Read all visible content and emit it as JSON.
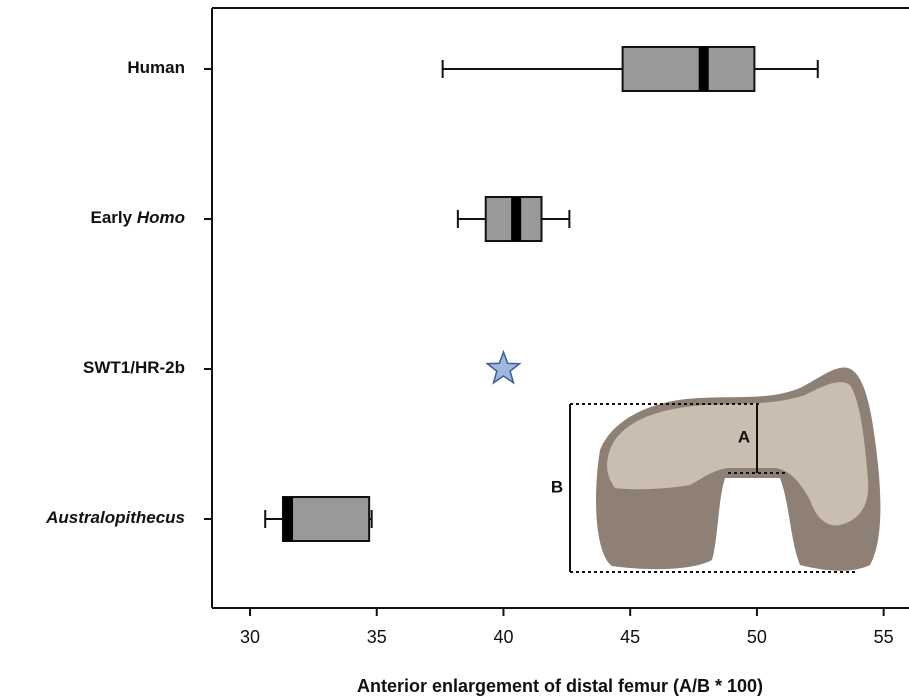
{
  "chart_data": {
    "type": "boxplot",
    "orientation": "horizontal",
    "xlabel": "Anterior enlargement of distal femur (A/B * 100)",
    "xlim": [
      28.5,
      56
    ],
    "xticks": [
      30,
      35,
      40,
      45,
      50,
      55
    ],
    "categories": [
      [
        {
          "text": "Human"
        }
      ],
      [
        {
          "text": "Early "
        },
        {
          "text": "Homo",
          "italic": true
        }
      ],
      [
        {
          "text": "SWT1/HR-2b"
        }
      ],
      [
        {
          "text": "Australopithecus",
          "italic": true
        }
      ]
    ],
    "boxes": [
      {
        "min": 37.6,
        "q1": 44.7,
        "median": 47.9,
        "q3": 49.9,
        "max": 52.4
      },
      {
        "min": 38.2,
        "q1": 39.3,
        "median": 40.5,
        "q3": 41.5,
        "max": 42.6
      },
      null,
      {
        "min": 30.6,
        "q1": 31.3,
        "median": 31.5,
        "q3": 34.7,
        "max": 34.8
      }
    ],
    "points": [
      null,
      null,
      40.0,
      null
    ],
    "box_color": "#999999",
    "median_color": "#000000",
    "point_color": "#9db8e0",
    "inset": {
      "labels": [
        "A",
        "B"
      ]
    }
  }
}
